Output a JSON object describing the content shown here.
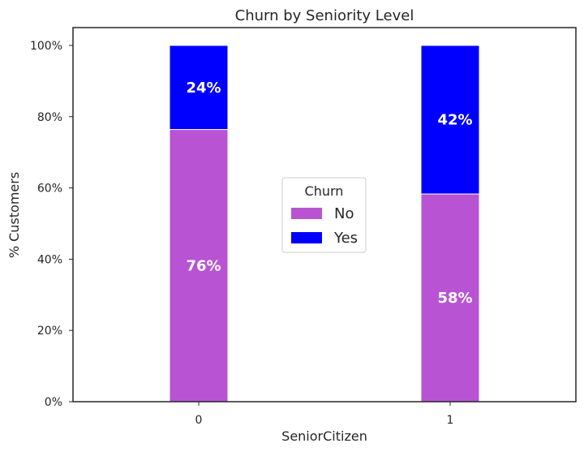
{
  "chart_data": {
    "type": "bar",
    "stacked": true,
    "title": "Churn by Seniority Level",
    "xlabel": "SeniorCitizen",
    "ylabel": "% Customers",
    "categories": [
      "0",
      "1"
    ],
    "series": [
      {
        "name": "No",
        "values": [
          76.4,
          58.3
        ],
        "labels": [
          "76%",
          "58%"
        ],
        "color": "#b854d4"
      },
      {
        "name": "Yes",
        "values": [
          23.6,
          41.7
        ],
        "labels": [
          "24%",
          "42%"
        ],
        "color": "#0000ff"
      }
    ],
    "yticks": [
      {
        "value": 0,
        "label": "0%"
      },
      {
        "value": 20,
        "label": "20%"
      },
      {
        "value": 40,
        "label": "40%"
      },
      {
        "value": 60,
        "label": "60%"
      },
      {
        "value": 80,
        "label": "80%"
      },
      {
        "value": 100,
        "label": "100%"
      }
    ],
    "ylim": [
      0,
      105
    ],
    "grid": false,
    "legend": {
      "title": "Churn",
      "placement": "center"
    }
  }
}
